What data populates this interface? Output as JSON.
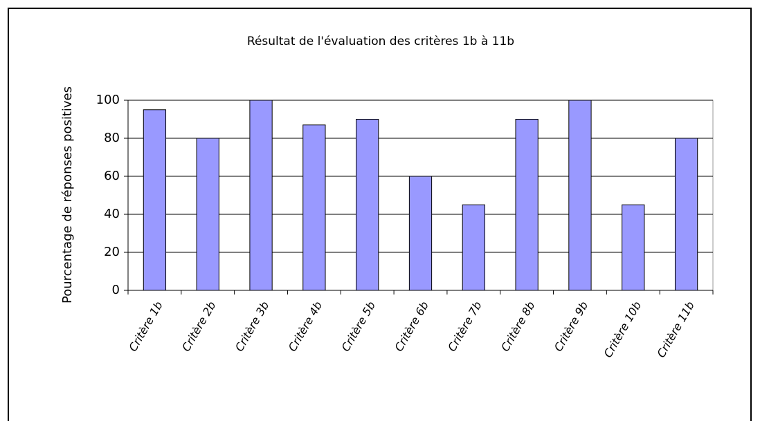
{
  "chart_data": {
    "type": "bar",
    "title": "Résultat de l'évaluation des critères 1b à 11b",
    "y_label": "Pourcentage de réponses positives",
    "categories": [
      "Critère 1b",
      "Critère 2b",
      "Critère 3b",
      "Critère 4b",
      "Critère 5b",
      "Critère 6b",
      "Critère 7b",
      "Critère 8b",
      "Critère 9b",
      "Critère 10b",
      "Critère 11b"
    ],
    "values": [
      95,
      80,
      100,
      87,
      90,
      60,
      45,
      90,
      100,
      45,
      80
    ],
    "color": "#9999ff",
    "ylim": [
      0,
      100
    ],
    "yticks": [
      0,
      20,
      40,
      60,
      80,
      100
    ],
    "grid": true
  }
}
